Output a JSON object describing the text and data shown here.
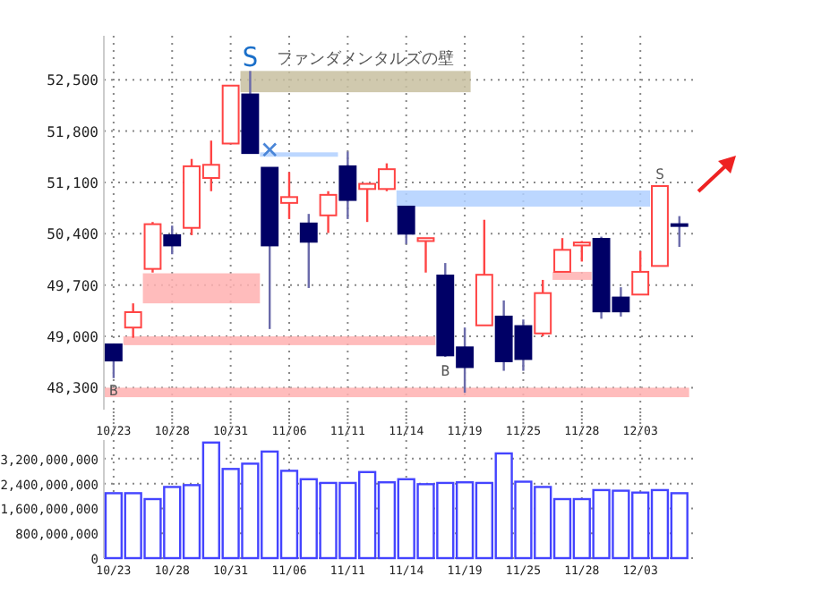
{
  "chart_data": [
    {
      "type": "candlestick",
      "categories": [
        "10/23",
        null,
        null,
        "10/28",
        null,
        null,
        "10/31",
        null,
        null,
        "11/06",
        null,
        null,
        "11/11",
        null,
        null,
        "11/14",
        null,
        null,
        "11/19",
        null,
        null,
        "11/25",
        null,
        null,
        "11/28",
        null,
        null,
        "12/03",
        null,
        null
      ],
      "ohlc": [
        [
          48890,
          48890,
          48430,
          48670
        ],
        [
          49120,
          49450,
          48980,
          49330
        ],
        [
          49920,
          50560,
          49870,
          50530
        ],
        [
          50380,
          50510,
          50120,
          50240
        ],
        [
          50480,
          51420,
          50380,
          51320
        ],
        [
          51160,
          51670,
          50980,
          51340
        ],
        [
          51630,
          52420,
          51630,
          52420
        ],
        [
          52300,
          52620,
          51500,
          51500
        ],
        [
          51300,
          51300,
          49100,
          50240
        ],
        [
          50820,
          51240,
          50600,
          50900
        ],
        [
          50540,
          50670,
          49660,
          50290
        ],
        [
          50650,
          50980,
          50410,
          50930
        ],
        [
          51320,
          51520,
          50600,
          50860
        ],
        [
          51010,
          51090,
          50560,
          51080
        ],
        [
          51010,
          51360,
          50980,
          51280
        ],
        [
          50770,
          50770,
          50260,
          50400
        ],
        [
          50300,
          50340,
          49870,
          50340
        ],
        [
          49830,
          50000,
          48720,
          48740
        ],
        [
          48850,
          49120,
          48230,
          48580
        ],
        [
          49150,
          50590,
          49150,
          49840
        ],
        [
          49270,
          49490,
          48530,
          48660
        ],
        [
          49140,
          49230,
          48530,
          48690
        ],
        [
          49040,
          49770,
          49000,
          49590
        ],
        [
          49880,
          50340,
          49880,
          50180
        ],
        [
          50240,
          50300,
          50020,
          50280
        ],
        [
          50330,
          50360,
          49240,
          49340
        ],
        [
          49530,
          49670,
          49270,
          49340
        ],
        [
          49570,
          50160,
          49570,
          49880
        ],
        [
          49960,
          51050,
          49960,
          51050
        ],
        [
          50530,
          50640,
          50220,
          50520
        ]
      ],
      "ylim": [
        48000,
        53100
      ],
      "yticks": [
        {
          "value": 48300,
          "label": "48,300"
        },
        {
          "value": 49000,
          "label": "49,000"
        },
        {
          "value": 49700,
          "label": "49,700"
        },
        {
          "value": 50400,
          "label": "50,400"
        },
        {
          "value": 51100,
          "label": "51,100"
        },
        {
          "value": 51800,
          "label": "51,800"
        },
        {
          "value": 52500,
          "label": "52,500"
        }
      ],
      "grid": true,
      "bands": [
        {
          "axis": "y",
          "from": 52330,
          "to": 52620,
          "color": "#c8bfa0",
          "label": "ファンダメンタルズの壁"
        },
        {
          "axis": "y",
          "from": 51450,
          "to": 51510,
          "color": "#b0d0ff"
        },
        {
          "axis": "y",
          "from": 49450,
          "to": 49860,
          "color": "#ffb0b0"
        },
        {
          "axis": "y",
          "from": 48880,
          "to": 49000,
          "color": "#ffb0b0"
        },
        {
          "axis": "y",
          "from": 48170,
          "to": 48300,
          "color": "#ffb0b0"
        },
        {
          "axis": "y",
          "from": 50770,
          "to": 50990,
          "color": "#b0d0ff"
        },
        {
          "axis": "y",
          "from": 49770,
          "to": 49880,
          "color": "#ffb0b0"
        }
      ],
      "annotations": [
        "S",
        "×",
        "S",
        "B",
        "B"
      ]
    },
    {
      "type": "bar",
      "categories": [
        "10/23",
        null,
        null,
        "10/28",
        null,
        null,
        "10/31",
        null,
        null,
        "11/06",
        null,
        null,
        "11/11",
        null,
        null,
        "11/14",
        null,
        null,
        "11/19",
        null,
        null,
        "11/25",
        null,
        null,
        "11/28",
        null,
        null,
        "12/03",
        null,
        null
      ],
      "values": [
        2090000000,
        2090000000,
        1900000000,
        2290000000,
        2350000000,
        3720000000,
        2870000000,
        3040000000,
        3430000000,
        2810000000,
        2540000000,
        2420000000,
        2420000000,
        2770000000,
        2440000000,
        2540000000,
        2380000000,
        2420000000,
        2440000000,
        2420000000,
        3370000000,
        2460000000,
        2290000000,
        1900000000,
        1900000000,
        2190000000,
        2170000000,
        2110000000,
        2190000000,
        2090000000
      ],
      "color": "#4444ff",
      "ylim": [
        0,
        3800000000
      ],
      "yticks": [
        0,
        {
          "value": 800000000,
          "label": "800,000,000"
        },
        {
          "value": 1600000000,
          "label": "1,600,000,000"
        },
        {
          "value": 2400000000,
          "label": "2,400,000,000"
        },
        {
          "value": 3200000000,
          "label": "3,200,000,000"
        }
      ],
      "grid": true
    }
  ]
}
